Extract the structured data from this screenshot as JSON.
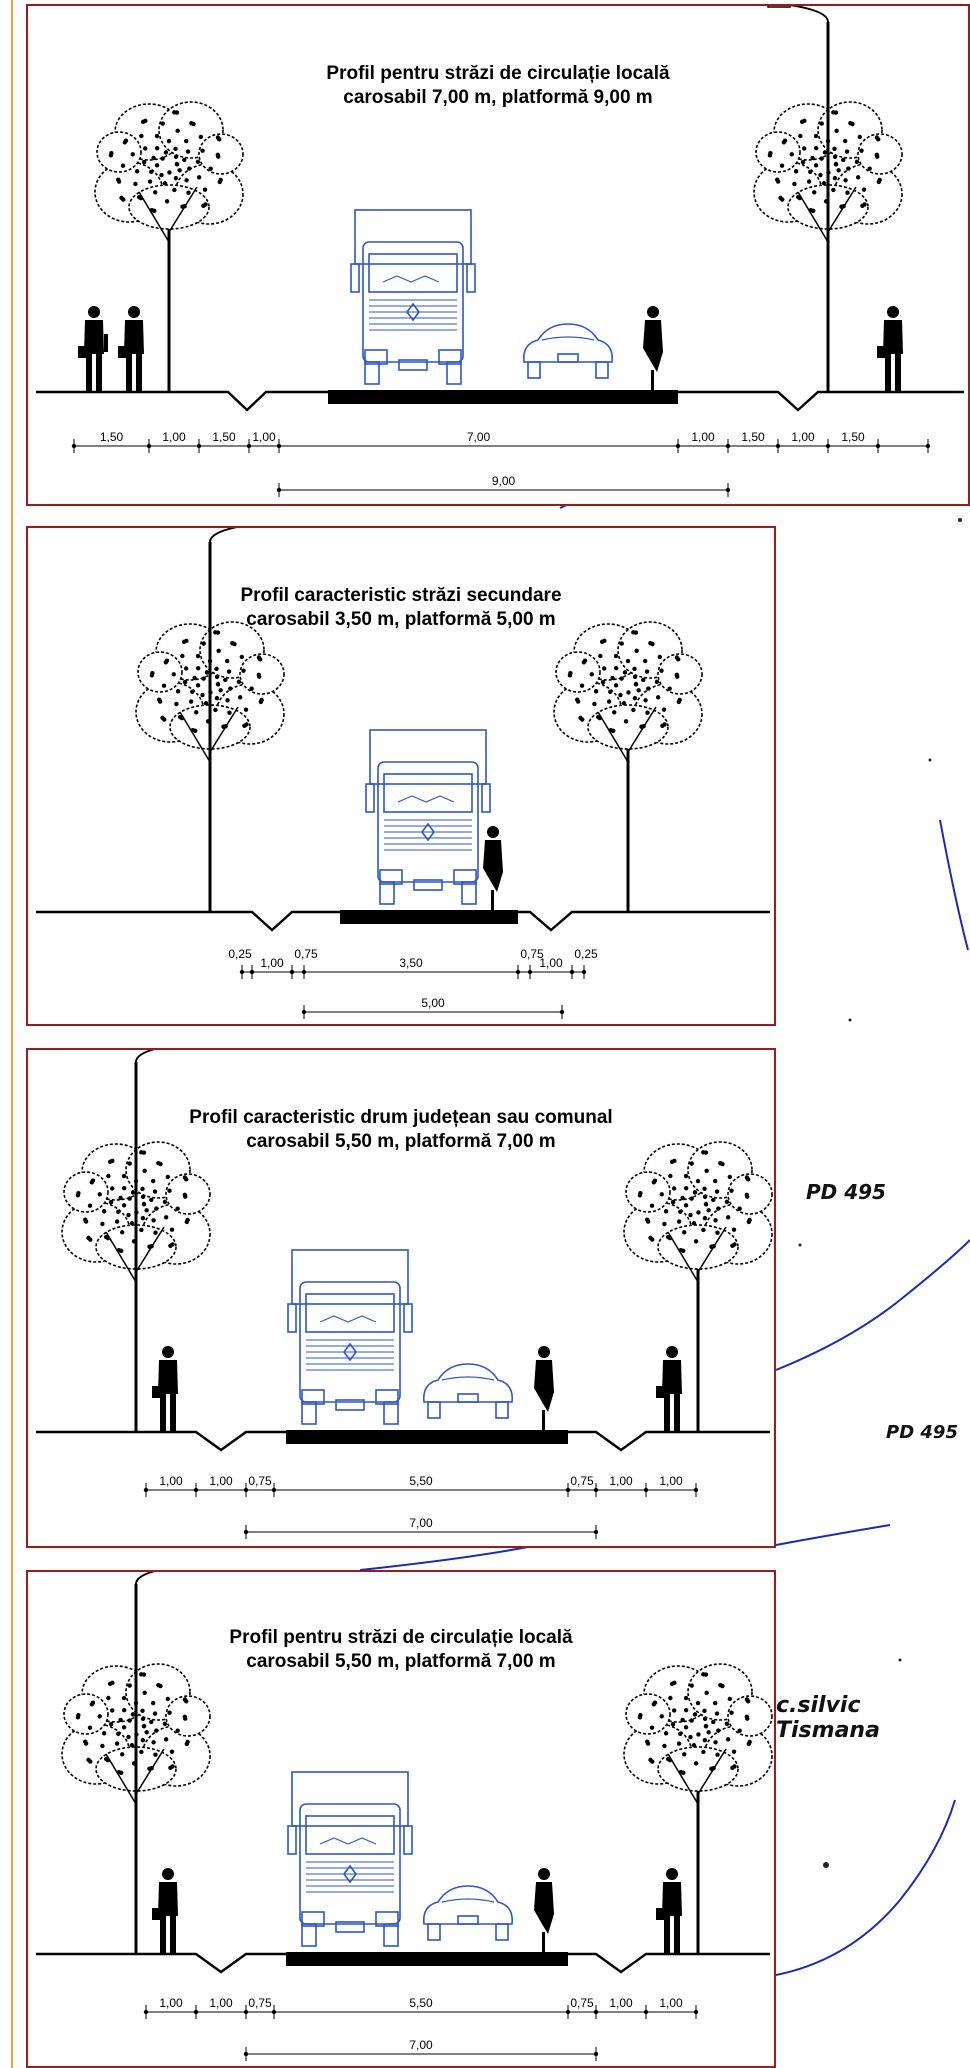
{
  "colors": {
    "frame": "#9b1b1f",
    "vehicle": "#2f56c4",
    "map_line": "#1a2bb0",
    "guide": "#e3a34b"
  },
  "map": {
    "labels": [
      {
        "id": "pd1",
        "text": "PD 495"
      },
      {
        "id": "pd2",
        "text": "PD 495"
      },
      {
        "id": "ocol",
        "text": "c.silvic Tismana"
      }
    ]
  },
  "panels": [
    {
      "title_line1": "Profil pentru străzi de circulație locală",
      "title_line2": "carosabil 7,00 m, platformă 9,00 m",
      "segments": [
        "1,50",
        "1,00",
        "1,50",
        "1,00",
        "7,00",
        "1,00",
        "1,50",
        "1,00",
        "1,50"
      ],
      "total": "9,00"
    },
    {
      "title_line1": "Profil caracteristic străzi secundare",
      "title_line2": "carosabil 3,50 m, platformă 5,00 m",
      "segments": [
        "0,25",
        "1,00",
        "0,75",
        "3,50",
        "0,75",
        "1,00",
        "0,25"
      ],
      "total": "5,00"
    },
    {
      "title_line1": "Profil caracteristic drum județean sau comunal",
      "title_line2": "carosabil 5,50 m, platformă 7,00 m",
      "segments": [
        "1,00",
        "1,00",
        "0,75",
        "5,50",
        "0,75",
        "1,00",
        "1,00"
      ],
      "total": "7,00"
    },
    {
      "title_line1": "Profil pentru străzi de circulație locală",
      "title_line2": "carosabil 5,50 m, platformă 7,00 m",
      "segments": [
        "1,00",
        "1,00",
        "0,75",
        "5,50",
        "0,75",
        "1,00",
        "1,00"
      ],
      "total": "7,00"
    }
  ]
}
